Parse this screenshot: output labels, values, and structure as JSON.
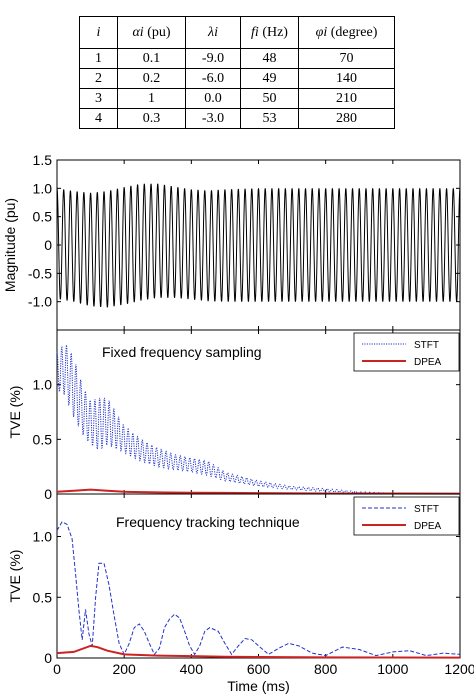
{
  "table": {
    "header": [
      {
        "sym": "i",
        "unit": ""
      },
      {
        "sym": "αi",
        "unit": " (pu)"
      },
      {
        "sym": "λi",
        "unit": ""
      },
      {
        "sym": "fi",
        "unit": " (Hz)"
      },
      {
        "sym": "φi",
        "unit": " (degree)"
      }
    ],
    "rows": [
      [
        "1",
        "0.1",
        "-9.0",
        "48",
        "70"
      ],
      [
        "2",
        "0.2",
        "-6.0",
        "49",
        "140"
      ],
      [
        "3",
        "1",
        "0.0",
        "50",
        "210"
      ],
      [
        "4",
        "0.3",
        "-3.0",
        "53",
        "280"
      ]
    ]
  },
  "chart_data": [
    {
      "type": "line",
      "title": "",
      "xlabel": "",
      "ylabel": "Magnitude (pu)",
      "xlim": [
        0,
        1200
      ],
      "ylim": [
        -1.5,
        1.5
      ],
      "yticks": [
        "1.5",
        "1.0",
        "0.5",
        "0",
        "-0.5",
        "-1.0"
      ],
      "envelope": {
        "x": [
          0,
          50,
          100,
          150,
          200,
          250,
          300,
          350,
          400,
          450,
          500,
          600,
          700,
          800,
          900,
          1000,
          1100,
          1200
        ],
        "upper": [
          1.0,
          0.95,
          0.92,
          0.95,
          1.02,
          1.08,
          1.08,
          1.03,
          0.98,
          0.96,
          0.98,
          1.0,
          1.0,
          1.0,
          1.0,
          1.0,
          1.0,
          1.0
        ],
        "lower": [
          -0.95,
          -1.0,
          -1.08,
          -1.1,
          -1.05,
          -0.98,
          -0.93,
          -0.93,
          -0.96,
          -0.99,
          -1.0,
          -1.0,
          -1.0,
          -1.0,
          -1.0,
          -1.0,
          -1.0,
          -1.0
        ]
      },
      "series": [
        {
          "values": "oscillating waveform within envelope",
          "color": "#000000"
        }
      ]
    },
    {
      "type": "line",
      "annotation": "Fixed frequency sampling",
      "ylabel": "TVE (%)",
      "xlim": [
        0,
        1200
      ],
      "ylim": [
        0,
        1.5
      ],
      "yticks": [
        "1.0",
        "0.5",
        "0"
      ],
      "legend": {
        "position": "top-right",
        "entries": [
          "STFT",
          "DPEA"
        ]
      },
      "series": [
        {
          "name": "STFT",
          "color": "#2233cc",
          "style": "dotted",
          "x": [
            0,
            25,
            50,
            75,
            100,
            125,
            150,
            200,
            250,
            300,
            350,
            400,
            450,
            500,
            600,
            700,
            800,
            900,
            1000,
            1100,
            1200
          ],
          "upper": [
            1.3,
            1.38,
            1.25,
            1.0,
            0.85,
            0.88,
            0.88,
            0.62,
            0.5,
            0.42,
            0.36,
            0.33,
            0.3,
            0.2,
            0.12,
            0.07,
            0.05,
            0.02,
            0.01,
            0.005,
            0.0
          ],
          "lower": [
            0.95,
            0.9,
            0.7,
            0.55,
            0.45,
            0.4,
            0.45,
            0.38,
            0.3,
            0.25,
            0.22,
            0.2,
            0.17,
            0.12,
            0.07,
            0.04,
            0.02,
            0.01,
            0.005,
            0.0,
            0.0
          ]
        },
        {
          "name": "DPEA",
          "color": "#cc2222",
          "style": "solid",
          "x": [
            0,
            50,
            100,
            150,
            200,
            300,
            400,
            500,
            600,
            800,
            1000,
            1200
          ],
          "y": [
            0.02,
            0.03,
            0.04,
            0.03,
            0.02,
            0.015,
            0.012,
            0.01,
            0.008,
            0.005,
            0.004,
            0.003
          ]
        }
      ]
    },
    {
      "type": "line",
      "annotation": "Frequency tracking technique",
      "ylabel": "TVE (%)",
      "xlabel": "Time (ms)",
      "xlim": [
        0,
        1200
      ],
      "ylim": [
        0,
        1.35
      ],
      "xticks": [
        "0",
        "200",
        "400",
        "600",
        "800",
        "1000",
        "1200"
      ],
      "yticks": [
        "1.0",
        "0.5",
        "0"
      ],
      "legend": {
        "position": "top-right",
        "entries": [
          "STFT",
          "DPEA"
        ]
      },
      "series": [
        {
          "name": "STFT",
          "color": "#2233cc",
          "style": "dashed",
          "x": [
            0,
            15,
            30,
            45,
            55,
            65,
            75,
            85,
            95,
            105,
            115,
            125,
            140,
            155,
            170,
            185,
            200,
            215,
            230,
            245,
            260,
            275,
            290,
            305,
            320,
            335,
            350,
            365,
            380,
            395,
            410,
            425,
            440,
            455,
            480,
            500,
            520,
            540,
            560,
            580,
            600,
            630,
            660,
            690,
            720,
            760,
            800,
            850,
            900,
            950,
            1000,
            1050,
            1100,
            1150,
            1200
          ],
          "y": [
            1.05,
            1.12,
            1.1,
            0.98,
            0.7,
            0.4,
            0.15,
            0.4,
            0.2,
            0.1,
            0.5,
            0.78,
            0.78,
            0.6,
            0.35,
            0.12,
            0.03,
            0.12,
            0.25,
            0.28,
            0.22,
            0.12,
            0.03,
            0.08,
            0.25,
            0.32,
            0.36,
            0.33,
            0.22,
            0.1,
            0.03,
            0.1,
            0.22,
            0.25,
            0.22,
            0.12,
            0.03,
            0.1,
            0.16,
            0.15,
            0.1,
            0.03,
            0.08,
            0.12,
            0.1,
            0.04,
            0.02,
            0.09,
            0.07,
            0.02,
            0.05,
            0.06,
            0.02,
            0.04,
            0.03
          ]
        },
        {
          "name": "DPEA",
          "color": "#cc2222",
          "style": "solid",
          "x": [
            0,
            50,
            100,
            120,
            150,
            200,
            300,
            400,
            500,
            600,
            800,
            1000,
            1200
          ],
          "y": [
            0.04,
            0.05,
            0.1,
            0.09,
            0.06,
            0.03,
            0.02,
            0.015,
            0.01,
            0.008,
            0.005,
            0.004,
            0.003
          ]
        }
      ]
    }
  ]
}
